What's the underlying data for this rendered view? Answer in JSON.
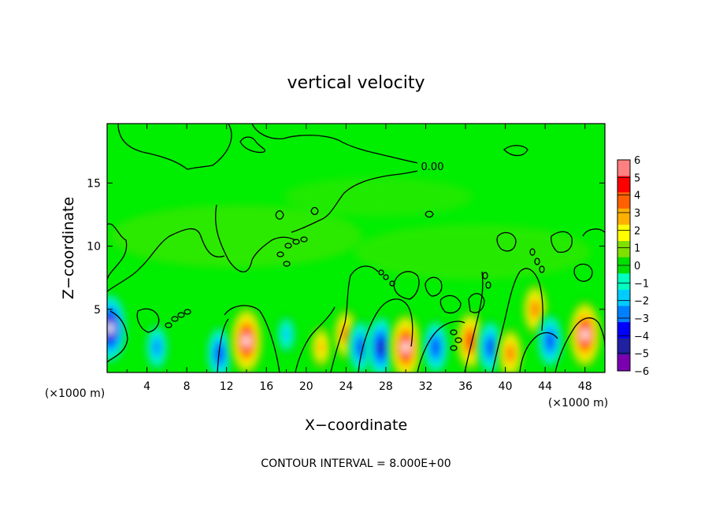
{
  "chart_data": {
    "type": "heatmap",
    "title": "vertical velocity",
    "xlabel": "X−coordinate",
    "ylabel": "Z−coordinate",
    "x_unit_label": "(×1000 m)",
    "z_unit_label": "(×1000 m)",
    "xlim": [
      0,
      50
    ],
    "ylim": [
      0,
      19.7
    ],
    "x_ticks": [
      4,
      8,
      12,
      16,
      20,
      24,
      28,
      32,
      36,
      40,
      44,
      48
    ],
    "x_tick_labels": [
      "4",
      "8",
      "12",
      "16",
      "20",
      "24",
      "28",
      "32",
      "36",
      "40",
      "44",
      "48"
    ],
    "y_ticks": [
      5,
      10,
      15
    ],
    "y_tick_labels": [
      "5",
      "10",
      "15"
    ],
    "colorbar": {
      "min": -6,
      "max": 6,
      "tick_values": [
        6,
        5,
        4,
        3,
        2,
        1,
        0,
        -1,
        -2,
        -3,
        -4,
        -5,
        -6
      ],
      "tick_labels": [
        "6",
        "5",
        "4",
        "3",
        "2",
        "1",
        "0",
        "−1",
        "−2",
        "−3",
        "−4",
        "−5",
        "−6"
      ],
      "colors": [
        "#7a00b0",
        "#2020a0",
        "#0000ff",
        "#0080ff",
        "#00ccff",
        "#00ffc0",
        "#00e000",
        "#7fe000",
        "#ffff00",
        "#ffb000",
        "#ff6000",
        "#ff0000",
        "#ff8080"
      ]
    },
    "contour_label": "0.00",
    "contour_interval_text": "CONTOUR INTERVAL = 8.000E+00",
    "features": [
      {
        "x": 0.3,
        "z": 3.5,
        "value": -6
      },
      {
        "x": 5.0,
        "z": 2.0,
        "value": -3
      },
      {
        "x": 11.3,
        "z": 1.5,
        "value": -4
      },
      {
        "x": 14.0,
        "z": 2.5,
        "value": 6
      },
      {
        "x": 18.0,
        "z": 3.0,
        "value": -2
      },
      {
        "x": 21.5,
        "z": 2.0,
        "value": 3
      },
      {
        "x": 24.0,
        "z": 3.0,
        "value": 4
      },
      {
        "x": 25.5,
        "z": 2.0,
        "value": -4
      },
      {
        "x": 27.5,
        "z": 2.0,
        "value": -5
      },
      {
        "x": 30.0,
        "z": 2.0,
        "value": 6
      },
      {
        "x": 33.0,
        "z": 2.0,
        "value": -4
      },
      {
        "x": 36.5,
        "z": 2.5,
        "value": 5
      },
      {
        "x": 38.5,
        "z": 2.0,
        "value": -4
      },
      {
        "x": 40.5,
        "z": 1.5,
        "value": 4
      },
      {
        "x": 43.0,
        "z": 5.0,
        "value": 4
      },
      {
        "x": 44.5,
        "z": 2.5,
        "value": -4
      },
      {
        "x": 48.0,
        "z": 3.0,
        "value": 6
      }
    ]
  }
}
